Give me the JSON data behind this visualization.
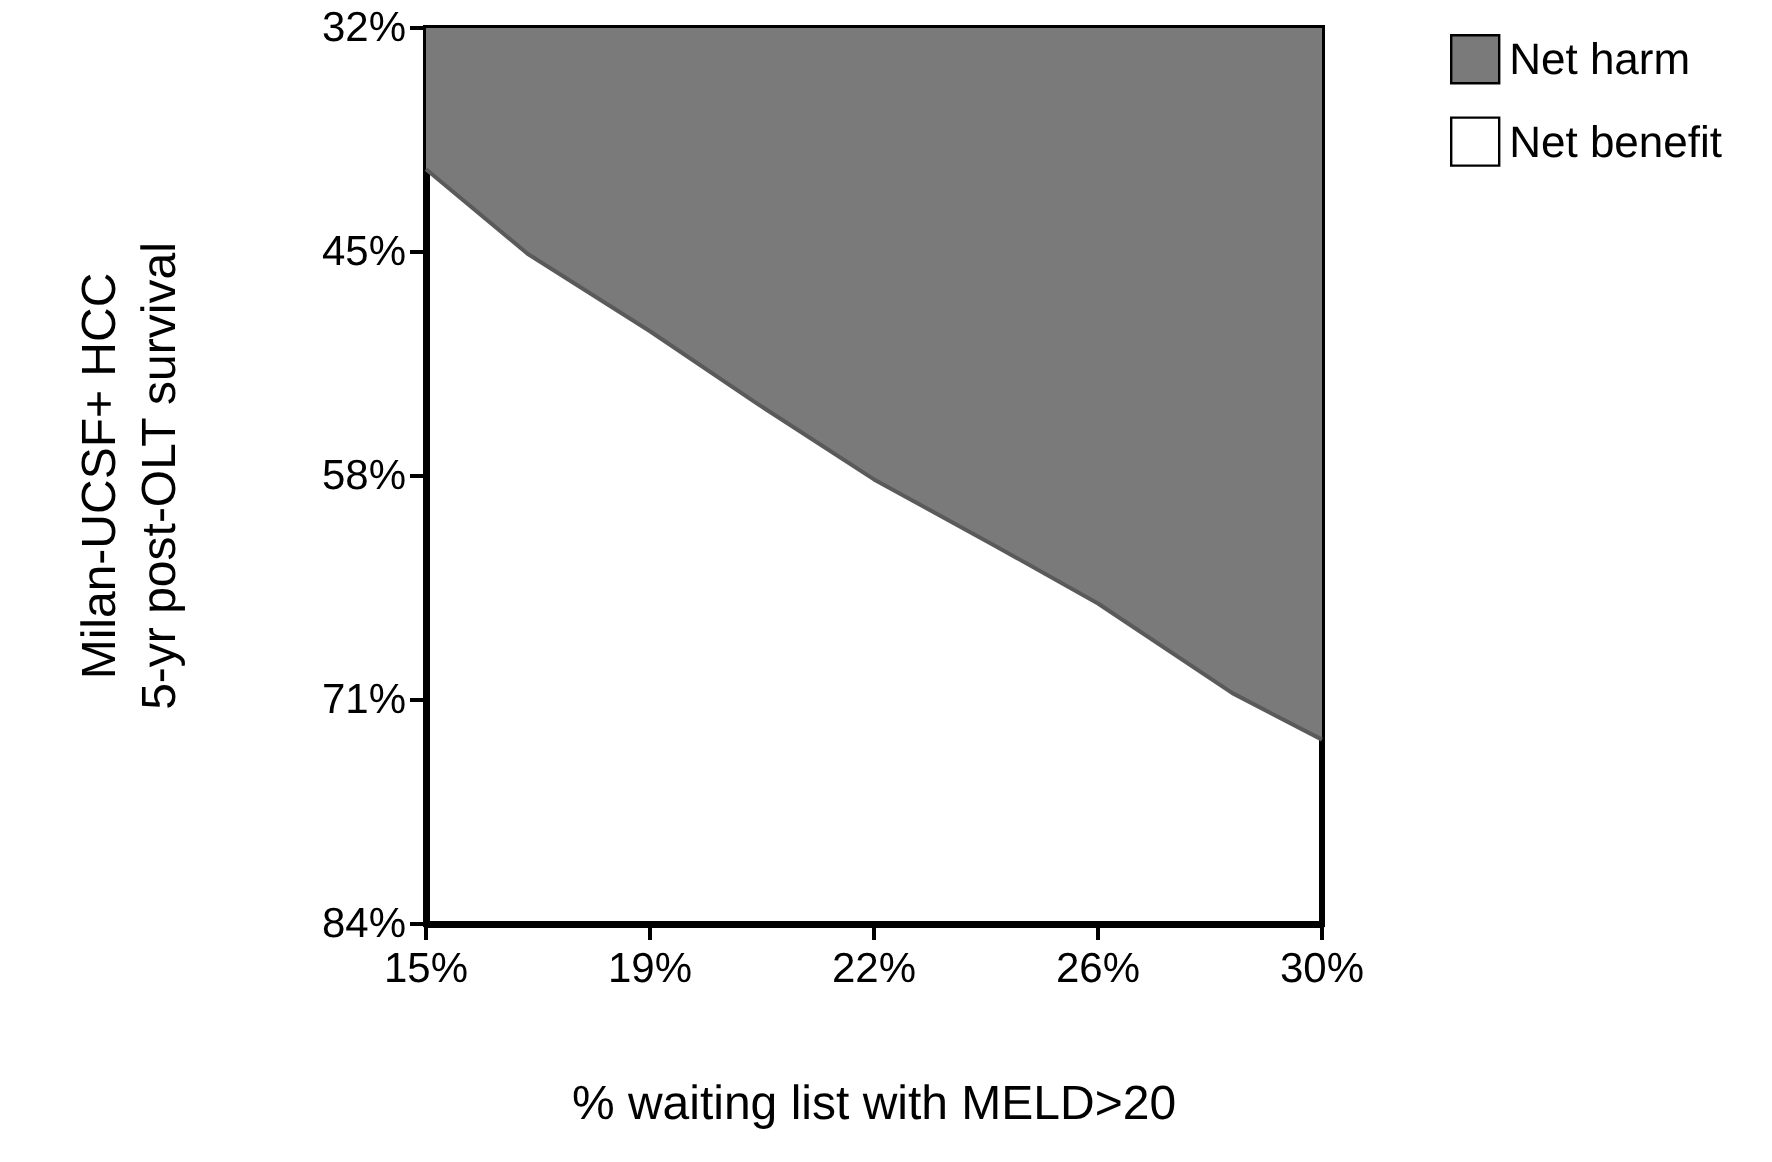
{
  "chart_data": {
    "type": "area",
    "xlabel": "% waiting list with MELD>20",
    "ylabel": "Milan-UCSF+ HCC\n5-yr post-OLT survival",
    "x": [
      15,
      16.7,
      18.75,
      20.5,
      22.5,
      24.5,
      26.25,
      28.5,
      30
    ],
    "series": [
      {
        "name": "Net harm",
        "color": "#7a7a7a",
        "values": [
          40.2,
          45.1,
          49.6,
          53.7,
          58.2,
          62.0,
          65.4,
          70.6,
          73.3
        ]
      },
      {
        "name": "Net benefit",
        "color": "#ffffff",
        "values": [
          null,
          null,
          null,
          null,
          null,
          null,
          null,
          null,
          null
        ]
      }
    ],
    "xlim": [
      15,
      30
    ],
    "xticks": [
      {
        "value": 15,
        "label": "15%"
      },
      {
        "value": 18.75,
        "label": "19%"
      },
      {
        "value": 22.5,
        "label": "22%"
      },
      {
        "value": 26.25,
        "label": "26%"
      },
      {
        "value": 30,
        "label": "30%"
      }
    ],
    "ylim": [
      84,
      32
    ],
    "yticks": [
      {
        "value": 32,
        "label": "32%"
      },
      {
        "value": 45,
        "label": "45%"
      },
      {
        "value": 58,
        "label": "58%"
      },
      {
        "value": 71,
        "label": "71%"
      },
      {
        "value": 84,
        "label": "84%"
      }
    ],
    "grid": false,
    "legend": "top right"
  }
}
